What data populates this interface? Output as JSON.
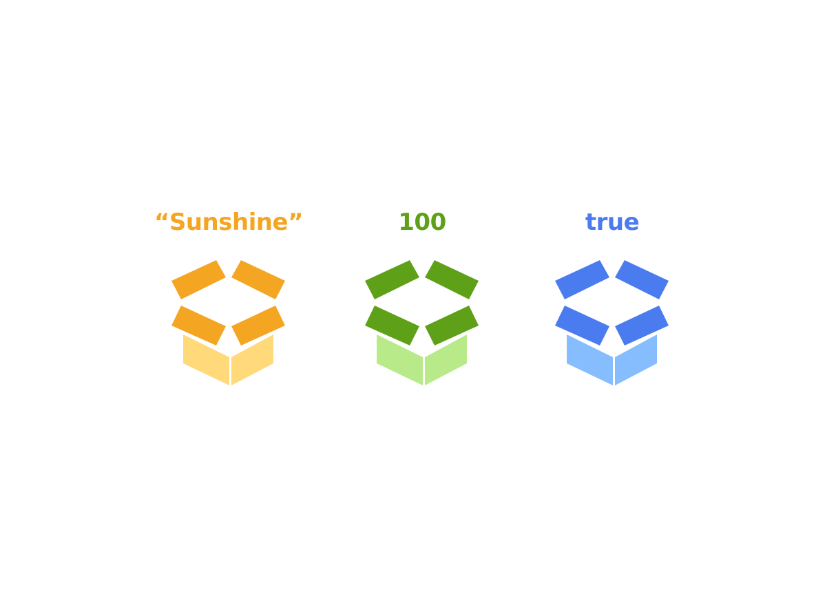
{
  "boxes": [
    {
      "label": "“Sunshine”",
      "label_color": "#F4A522",
      "flap_color": "#F4A522",
      "body_color": "#FFD97A",
      "icon": "open-box-icon"
    },
    {
      "label": "100",
      "label_color": "#5EA119",
      "flap_color": "#5EA119",
      "body_color": "#B9EA8A",
      "icon": "open-box-icon"
    },
    {
      "label": "true",
      "label_color": "#4A7BEF",
      "flap_color": "#4A7BEF",
      "body_color": "#85BDFE",
      "icon": "open-box-icon"
    }
  ]
}
